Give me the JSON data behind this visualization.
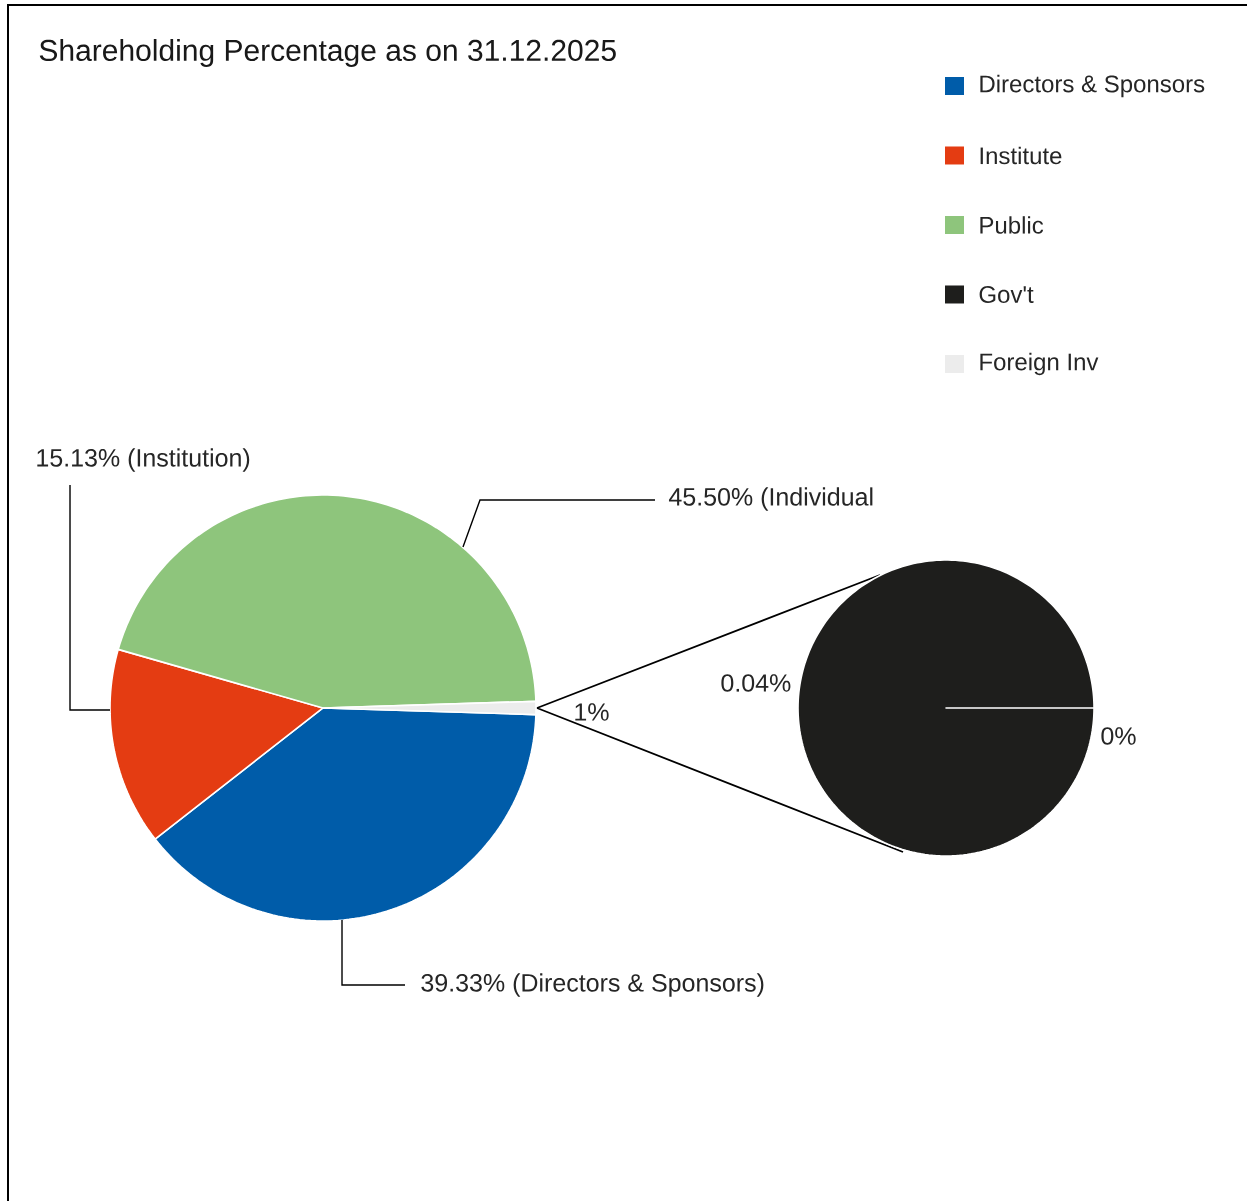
{
  "chart_data": [
    {
      "type": "pie",
      "title": "Shareholding Percentage as on 31.12.2025",
      "categories": [
        "Directors & Sponsors",
        "Institute",
        "Public",
        null
      ],
      "values": [
        39.33,
        15.13,
        45.5,
        1
      ],
      "colors": [
        "#005ca9",
        "#e43c12",
        "#8ec57c",
        "#ececec"
      ],
      "value_labels": [
        "39.33% (Directors &  Sponsors)",
        "15.13% (Institution)",
        "45.50% (Individual",
        "1%"
      ],
      "legend": "top right"
    },
    {
      "type": "pie",
      "categories": [
        "Gov't",
        "Foreign Inv"
      ],
      "values": [
        0.04,
        0
      ],
      "colors": [
        "#1e1e1c",
        "#ececec"
      ],
      "value_labels": [
        "0.04%",
        "0%"
      ],
      "legend": "top right"
    }
  ]
}
